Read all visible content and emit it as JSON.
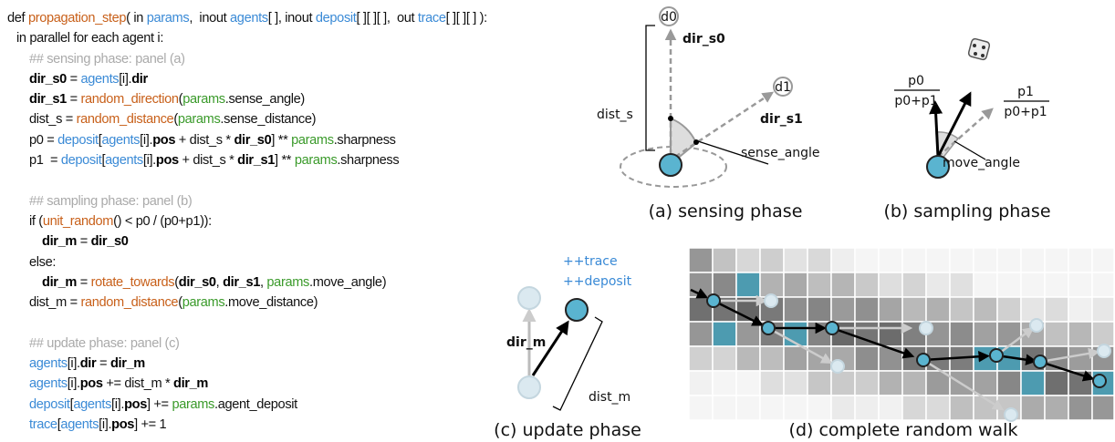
{
  "code": {
    "lines": [
      [
        {
          "text": "def ",
          "style": "plain"
        },
        {
          "text": "propagation_step",
          "style": "func"
        },
        {
          "text": "( in ",
          "style": "plain"
        },
        {
          "text": "params",
          "style": "var"
        },
        {
          "text": ",  inout ",
          "style": "plain"
        },
        {
          "text": "agents",
          "style": "var"
        },
        {
          "text": "[ ], inout ",
          "style": "plain"
        },
        {
          "text": "deposit",
          "style": "var"
        },
        {
          "text": "[ ][ ][ ],  out ",
          "style": "plain"
        },
        {
          "text": "trace",
          "style": "var"
        },
        {
          "text": "[ ][ ][ ] ):",
          "style": "plain"
        }
      ],
      [
        {
          "text": "in parallel for each agent i:",
          "style": "plain"
        }
      ],
      [
        {
          "text": "## sensing phase: panel (a)",
          "style": "comment"
        }
      ],
      [
        {
          "text": "dir_s0",
          "style": "bold"
        },
        {
          "text": " = ",
          "style": "plain"
        },
        {
          "text": "agents",
          "style": "var"
        },
        {
          "text": "[i].",
          "style": "plain"
        },
        {
          "text": "dir",
          "style": "bold"
        }
      ],
      [
        {
          "text": "dir_s1",
          "style": "bold"
        },
        {
          "text": " = ",
          "style": "plain"
        },
        {
          "text": "random_direction",
          "style": "func"
        },
        {
          "text": "(",
          "style": "plain"
        },
        {
          "text": "params",
          "style": "param"
        },
        {
          "text": ".sense_angle)",
          "style": "plain"
        }
      ],
      [
        {
          "text": "dist_s = ",
          "style": "plain"
        },
        {
          "text": "random_distance",
          "style": "func"
        },
        {
          "text": "(",
          "style": "plain"
        },
        {
          "text": "params",
          "style": "param"
        },
        {
          "text": ".sense_distance)",
          "style": "plain"
        }
      ],
      [
        {
          "text": "p0 = ",
          "style": "plain"
        },
        {
          "text": "deposit",
          "style": "var"
        },
        {
          "text": "[",
          "style": "plain"
        },
        {
          "text": "agents",
          "style": "var"
        },
        {
          "text": "[i].",
          "style": "plain"
        },
        {
          "text": "pos",
          "style": "bold"
        },
        {
          "text": " + dist_s * ",
          "style": "plain"
        },
        {
          "text": "dir_s0",
          "style": "bold"
        },
        {
          "text": "] ** ",
          "style": "plain"
        },
        {
          "text": "params",
          "style": "param"
        },
        {
          "text": ".sharpness",
          "style": "plain"
        }
      ],
      [
        {
          "text": "p1  = ",
          "style": "plain"
        },
        {
          "text": "deposit",
          "style": "var"
        },
        {
          "text": "[",
          "style": "plain"
        },
        {
          "text": "agents",
          "style": "var"
        },
        {
          "text": "[i].",
          "style": "plain"
        },
        {
          "text": "pos",
          "style": "bold"
        },
        {
          "text": " + dist_s * ",
          "style": "plain"
        },
        {
          "text": "dir_s1",
          "style": "bold"
        },
        {
          "text": "] ** ",
          "style": "plain"
        },
        {
          "text": "params",
          "style": "param"
        },
        {
          "text": ".sharpness",
          "style": "plain"
        }
      ],
      [],
      [
        {
          "text": "## sampling phase: panel (b)",
          "style": "comment"
        }
      ],
      [
        {
          "text": "if (",
          "style": "plain"
        },
        {
          "text": "unit_random",
          "style": "func"
        },
        {
          "text": "() < p0 / (p0+p1)):",
          "style": "plain"
        }
      ],
      [
        {
          "text": "dir_m",
          "style": "bold"
        },
        {
          "text": " = ",
          "style": "plain"
        },
        {
          "text": "dir_s0",
          "style": "bold"
        }
      ],
      [
        {
          "text": "else:",
          "style": "plain"
        }
      ],
      [
        {
          "text": "dir_m",
          "style": "bold"
        },
        {
          "text": " = ",
          "style": "plain"
        },
        {
          "text": "rotate_towards",
          "style": "func"
        },
        {
          "text": "(",
          "style": "plain"
        },
        {
          "text": "dir_s0",
          "style": "bold"
        },
        {
          "text": ", ",
          "style": "plain"
        },
        {
          "text": "dir_s1",
          "style": "bold"
        },
        {
          "text": ", ",
          "style": "plain"
        },
        {
          "text": "params",
          "style": "param"
        },
        {
          "text": ".move_angle)",
          "style": "plain"
        }
      ],
      [
        {
          "text": "dist_m = ",
          "style": "plain"
        },
        {
          "text": "random_distance",
          "style": "func"
        },
        {
          "text": "(",
          "style": "plain"
        },
        {
          "text": "params",
          "style": "param"
        },
        {
          "text": ".move_distance)",
          "style": "plain"
        }
      ],
      [],
      [
        {
          "text": "## update phase: panel (c)",
          "style": "comment"
        }
      ],
      [
        {
          "text": "agents",
          "style": "var"
        },
        {
          "text": "[i].",
          "style": "plain"
        },
        {
          "text": "dir",
          "style": "bold"
        },
        {
          "text": " = ",
          "style": "plain"
        },
        {
          "text": "dir_m",
          "style": "bold"
        }
      ],
      [
        {
          "text": "agents",
          "style": "var"
        },
        {
          "text": "[i].",
          "style": "plain"
        },
        {
          "text": "pos",
          "style": "bold"
        },
        {
          "text": " += dist_m * ",
          "style": "plain"
        },
        {
          "text": "dir_m",
          "style": "bold"
        }
      ],
      [
        {
          "text": "deposit",
          "style": "var"
        },
        {
          "text": "[",
          "style": "plain"
        },
        {
          "text": "agents",
          "style": "var"
        },
        {
          "text": "[i].",
          "style": "plain"
        },
        {
          "text": "pos",
          "style": "bold"
        },
        {
          "text": "] += ",
          "style": "plain"
        },
        {
          "text": "params",
          "style": "param"
        },
        {
          "text": ".agent_deposit",
          "style": "plain"
        }
      ],
      [
        {
          "text": "trace",
          "style": "var"
        },
        {
          "text": "[",
          "style": "plain"
        },
        {
          "text": "agents",
          "style": "var"
        },
        {
          "text": "[i].",
          "style": "plain"
        },
        {
          "text": "pos",
          "style": "bold"
        },
        {
          "text": "] += 1",
          "style": "plain"
        }
      ]
    ]
  },
  "panels": {
    "a": {
      "caption": "(a) sensing phase",
      "d0": "d0",
      "d1": "d1",
      "dir_s0": "dir_s0",
      "dir_s1": "dir_s1",
      "dist_s": "dist_s",
      "sense_angle": "sense_angle"
    },
    "b": {
      "caption": "(b) sampling phase",
      "p0_num": "p0",
      "p0_den": "p0+p1",
      "p1_num": "p1",
      "p1_den": "p0+p1",
      "move_angle": "move_angle"
    },
    "c": {
      "caption": "(c) update phase",
      "trace": "++trace",
      "deposit": "++deposit",
      "dir_m": "dir_m",
      "dist_m": "dist_m"
    },
    "d": {
      "caption": "(d) complete random walk"
    }
  }
}
